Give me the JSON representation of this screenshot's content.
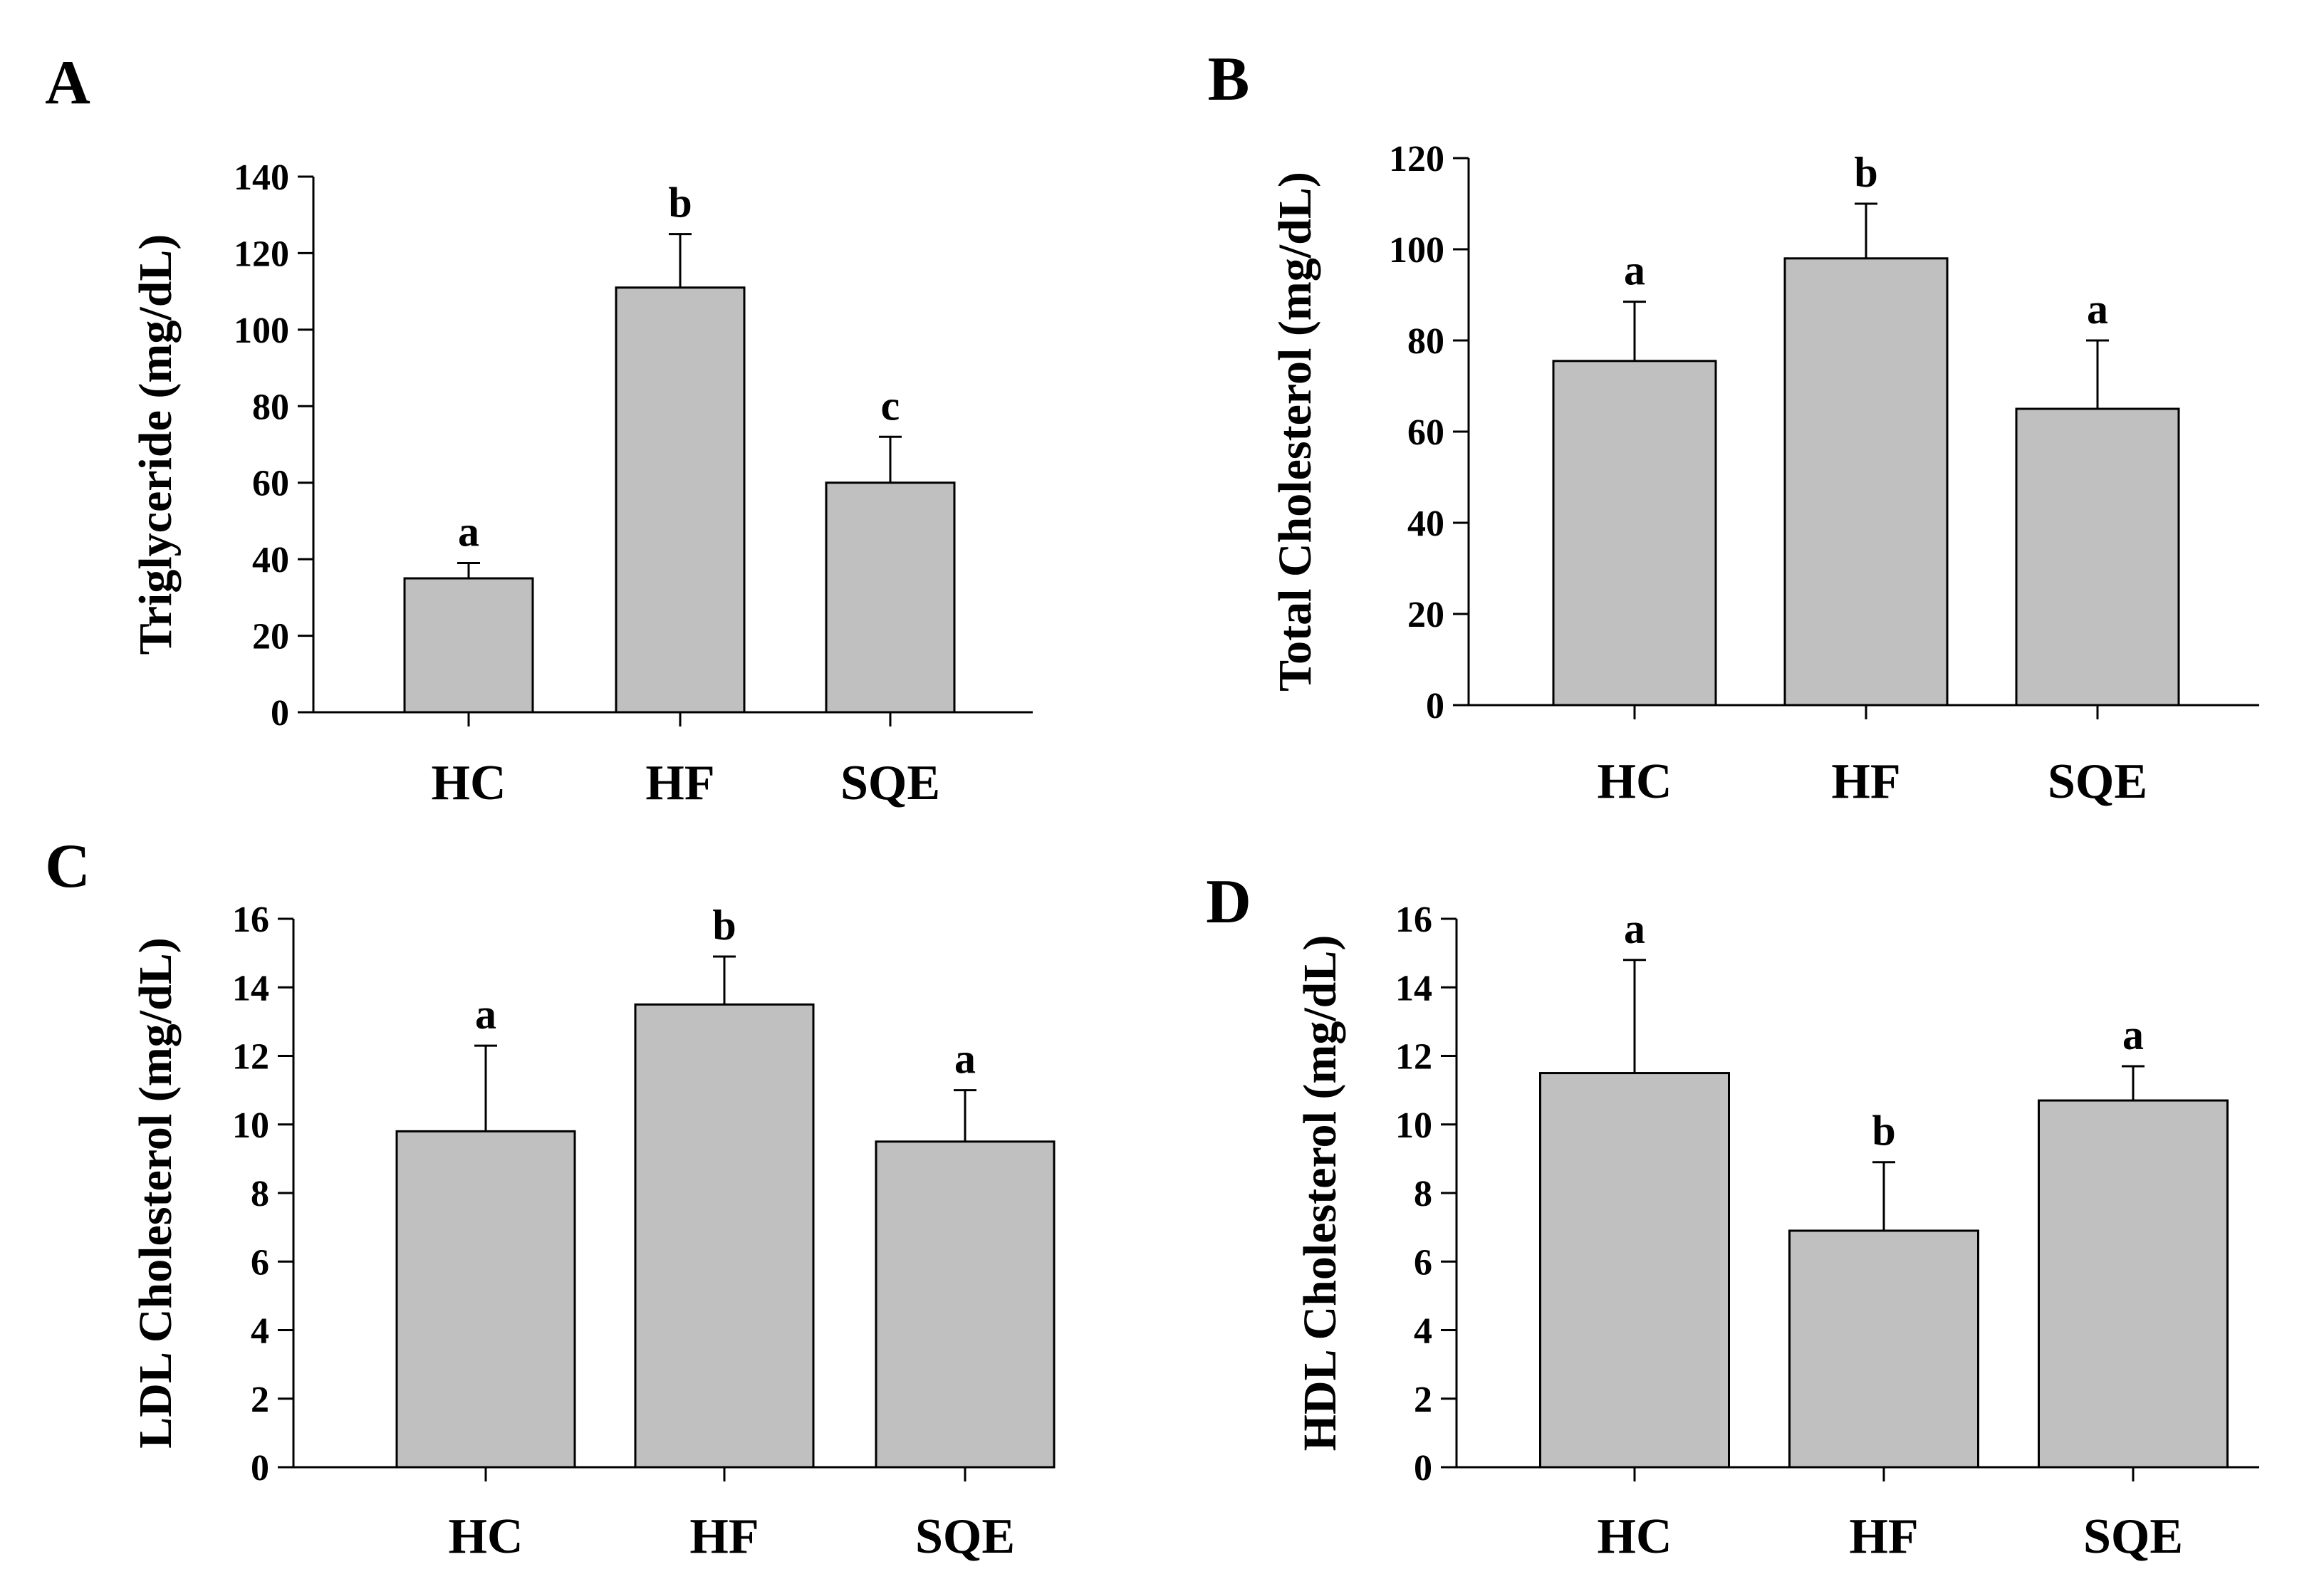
{
  "colors": {
    "bar_fill": "#c0c0c0",
    "stroke": "#000000",
    "background": "#ffffff"
  },
  "chart_data": [
    {
      "panel": "A",
      "type": "bar",
      "categories": [
        "HC",
        "HF",
        "SQE"
      ],
      "values": [
        35,
        111,
        60
      ],
      "errors": [
        4,
        14,
        12
      ],
      "significance": [
        "a",
        "b",
        "c"
      ],
      "ylabel": "Triglyceride (mg/dL)",
      "xlabel": "",
      "ylim": [
        0,
        140
      ],
      "yticks": [
        "0",
        "20",
        "40",
        "60",
        "80",
        "100",
        "120",
        "140"
      ]
    },
    {
      "panel": "B",
      "type": "bar",
      "categories": [
        "HC",
        "HF",
        "SQE"
      ],
      "values": [
        75.5,
        98,
        65
      ],
      "errors": [
        13,
        12,
        15
      ],
      "significance": [
        "a",
        "b",
        "a"
      ],
      "ylabel": "Total Cholesterol (mg/dL)",
      "xlabel": "",
      "ylim": [
        0,
        120
      ],
      "yticks": [
        "0",
        "20",
        "40",
        "60",
        "80",
        "100",
        "120"
      ]
    },
    {
      "panel": "C",
      "type": "bar",
      "categories": [
        "HC",
        "HF",
        "SQE"
      ],
      "values": [
        9.8,
        13.5,
        9.5
      ],
      "errors": [
        2.5,
        1.4,
        1.5
      ],
      "significance": [
        "a",
        "b",
        "a"
      ],
      "ylabel": "LDL Cholesterol (mg/dL)",
      "xlabel": "",
      "ylim": [
        0,
        16
      ],
      "yticks": [
        "0",
        "2",
        "4",
        "6",
        "8",
        "10",
        "12",
        "14",
        "16"
      ]
    },
    {
      "panel": "D",
      "type": "bar",
      "categories": [
        "HC",
        "HF",
        "SQE"
      ],
      "values": [
        11.5,
        6.9,
        10.7
      ],
      "errors": [
        3.3,
        2.0,
        1.0
      ],
      "significance": [
        "a",
        "b",
        "a"
      ],
      "ylabel": "HDL Cholesterol (mg/dL)",
      "xlabel": "",
      "ylim": [
        0,
        16
      ],
      "yticks": [
        "0",
        "2",
        "4",
        "6",
        "8",
        "10",
        "12",
        "14",
        "16"
      ]
    }
  ]
}
